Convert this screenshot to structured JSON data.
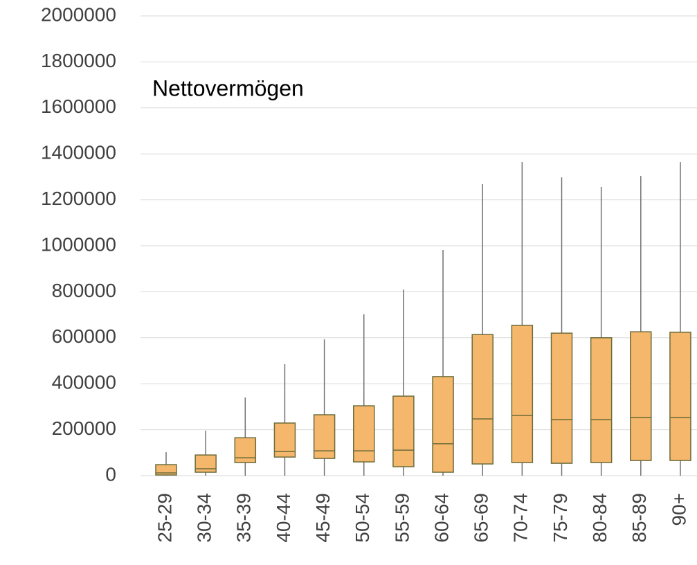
{
  "chart_data": {
    "type": "box",
    "title": "Nettovermögen",
    "categories": [
      "25-29",
      "30-34",
      "35-39",
      "40-44",
      "45-49",
      "50-54",
      "55-59",
      "60-64",
      "65-69",
      "70-74",
      "75-79",
      "80-84",
      "85-89",
      "90+"
    ],
    "min": [
      0,
      0,
      0,
      0,
      0,
      0,
      0,
      0,
      0,
      0,
      0,
      0,
      0,
      0
    ],
    "q1": [
      3000,
      15000,
      57000,
      81000,
      75000,
      60000,
      39000,
      15000,
      51000,
      57000,
      54000,
      57000,
      66000,
      66000
    ],
    "median": [
      12000,
      30000,
      78000,
      105000,
      108000,
      108000,
      111000,
      139000,
      247000,
      262000,
      244000,
      244000,
      253000,
      253000
    ],
    "q3": [
      48000,
      90000,
      165000,
      229000,
      265000,
      304000,
      346000,
      431000,
      614000,
      654000,
      620000,
      600000,
      626000,
      624000
    ],
    "max": [
      102000,
      196000,
      340000,
      485000,
      593000,
      702000,
      810000,
      982000,
      1268000,
      1364000,
      1298000,
      1256000,
      1304000,
      1364000
    ],
    "color": "#f4b76b",
    "edge_color": "#6b6b3a",
    "ylim": [
      0,
      2000000
    ],
    "yticks": [
      0,
      200000,
      400000,
      600000,
      800000,
      1000000,
      1200000,
      1400000,
      1600000,
      1800000,
      2000000
    ],
    "grid": true
  }
}
